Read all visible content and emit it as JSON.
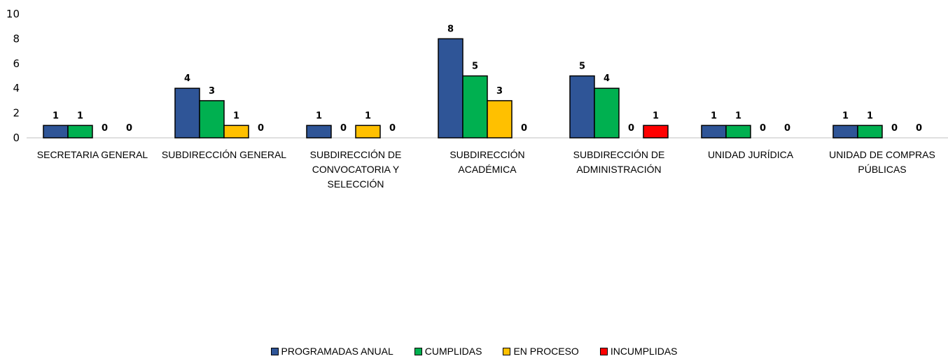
{
  "chart_data": {
    "type": "bar",
    "categories": [
      [
        "SECRETARIA GENERAL"
      ],
      [
        "SUBDIRECCIÓN GENERAL"
      ],
      [
        "SUBDIRECCIÓN DE",
        "CONVOCATORIA Y",
        "SELECCIÓN"
      ],
      [
        "SUBDIRECCIÓN",
        "ACADÉMICA"
      ],
      [
        "SUBDIRECCIÓN DE",
        "ADMINISTRACIÓN"
      ],
      [
        "UNIDAD JURÍDICA"
      ],
      [
        "UNIDAD DE COMPRAS",
        "PÚBLICAS"
      ]
    ],
    "series": [
      {
        "name": "PROGRAMADAS ANUAL",
        "color": "#2F5597",
        "values": [
          1,
          4,
          1,
          8,
          5,
          1,
          1
        ]
      },
      {
        "name": "CUMPLIDAS",
        "color": "#00B050",
        "values": [
          1,
          3,
          0,
          5,
          4,
          1,
          1
        ]
      },
      {
        "name": "EN PROCESO",
        "color": "#FFC000",
        "values": [
          0,
          1,
          1,
          3,
          0,
          0,
          0
        ]
      },
      {
        "name": "INCUMPLIDAS",
        "color": "#FF0000",
        "values": [
          0,
          0,
          0,
          0,
          1,
          0,
          0
        ]
      }
    ],
    "ylim": [
      0,
      10
    ],
    "yticks": [
      "0",
      "2",
      "4",
      "6",
      "8",
      "10"
    ],
    "grid": false,
    "data_labels": true,
    "legend_position": "bottom"
  }
}
